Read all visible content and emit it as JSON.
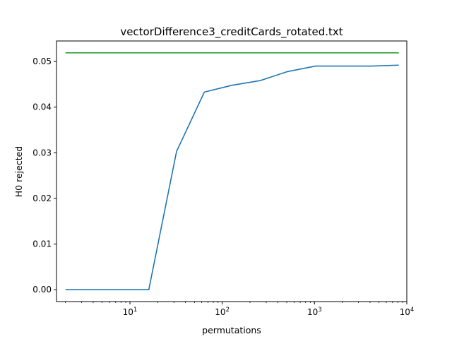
{
  "chart_data": {
    "type": "line",
    "title": "vectorDifference3_creditCards_rotated.txt",
    "xlabel": "permutations",
    "ylabel": "H0 rejected",
    "xscale": "log",
    "xlim": [
      1.6,
      10000
    ],
    "ylim": [
      -0.0026,
      0.0545
    ],
    "x_ticks": [
      {
        "value": 10,
        "base": "10",
        "exp": "1"
      },
      {
        "value": 100,
        "base": "10",
        "exp": "2"
      },
      {
        "value": 1000,
        "base": "10",
        "exp": "3"
      },
      {
        "value": 10000,
        "base": "10",
        "exp": "4"
      }
    ],
    "y_ticks": [
      {
        "value": 0.0,
        "label": "0.00"
      },
      {
        "value": 0.01,
        "label": "0.01"
      },
      {
        "value": 0.02,
        "label": "0.02"
      },
      {
        "value": 0.03,
        "label": "0.03"
      },
      {
        "value": 0.04,
        "label": "0.04"
      },
      {
        "value": 0.05,
        "label": "0.05"
      }
    ],
    "grid": false,
    "legend": "none",
    "series": [
      {
        "color": "#1f77b4",
        "x": [
          2,
          4,
          8,
          16,
          32,
          64,
          128,
          256,
          512,
          1024,
          2048,
          4096,
          8192
        ],
        "y": [
          0.0,
          0.0,
          0.0,
          0.0,
          0.0303,
          0.0433,
          0.0448,
          0.0458,
          0.0478,
          0.049,
          0.049,
          0.049,
          0.0492
        ]
      },
      {
        "color": "#2ca02c",
        "x": [
          2,
          8192
        ],
        "y": [
          0.0519,
          0.0519
        ]
      }
    ]
  }
}
